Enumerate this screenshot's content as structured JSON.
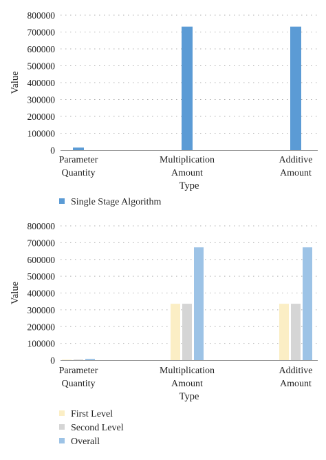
{
  "chart_data": [
    {
      "type": "bar",
      "categories": [
        "Parameter Quantity",
        "Multiplication Amount",
        "Additive Amount"
      ],
      "category_lines": [
        [
          "Parameter",
          "Quantity"
        ],
        [
          "Multiplication",
          "Amount"
        ],
        [
          "Additive",
          "Amount"
        ]
      ],
      "series": [
        {
          "name": "Single Stage Algorithm",
          "values": [
            15000,
            732000,
            732000
          ],
          "color": "#5b9bd5"
        }
      ],
      "xlabel": "Type",
      "ylabel": "Value",
      "ylim": [
        0,
        800000
      ],
      "yticks": [
        0,
        100000,
        200000,
        300000,
        400000,
        500000,
        600000,
        700000,
        800000
      ],
      "grid": "dotted horizontal",
      "legend_position": "bottom-left"
    },
    {
      "type": "bar",
      "categories": [
        "Parameter Quantity",
        "Multiplication Amount",
        "Additive Amount"
      ],
      "category_lines": [
        [
          "Parameter",
          "Quantity"
        ],
        [
          "Multiplication",
          "Amount"
        ],
        [
          "Additive",
          "Amount"
        ]
      ],
      "series": [
        {
          "name": "First Level",
          "values": [
            3000,
            336000,
            336000
          ],
          "color": "#fbeec5"
        },
        {
          "name": "Second Level",
          "values": [
            4000,
            336000,
            336000
          ],
          "color": "#d5d5d5"
        },
        {
          "name": "Overall",
          "values": [
            8000,
            672000,
            672000
          ],
          "color": "#9dc3e6"
        }
      ],
      "xlabel": "Type",
      "ylabel": "Value",
      "ylim": [
        0,
        800000
      ],
      "yticks": [
        0,
        100000,
        200000,
        300000,
        400000,
        500000,
        600000,
        700000,
        800000
      ],
      "grid": "dotted horizontal",
      "legend_position": "bottom-left"
    }
  ]
}
